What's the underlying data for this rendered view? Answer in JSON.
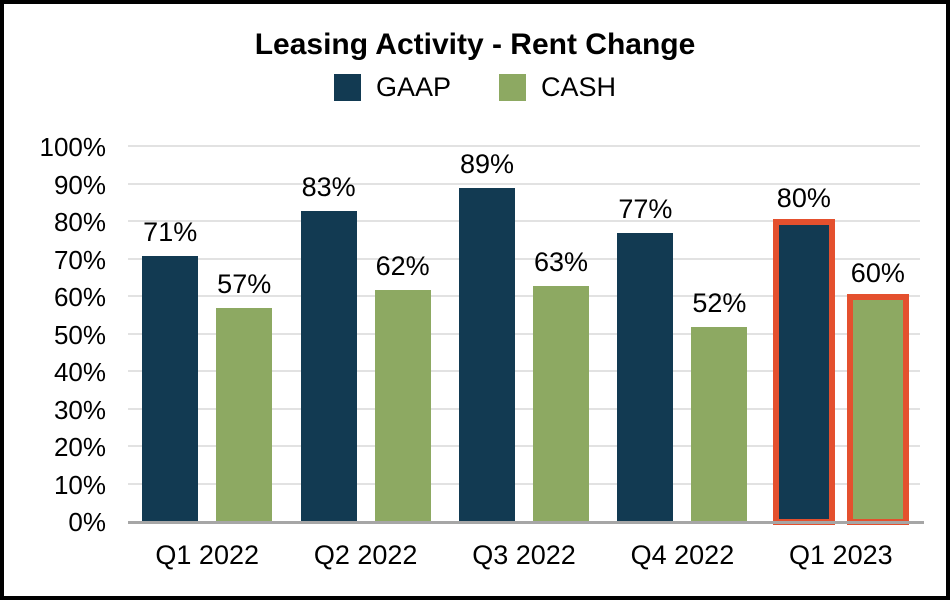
{
  "title": "Leasing Activity - Rent Change",
  "chart_data": {
    "type": "bar",
    "title": "Leasing Activity - Rent Change",
    "categories": [
      "Q1 2022",
      "Q2 2022",
      "Q3 2022",
      "Q4 2022",
      "Q1 2023"
    ],
    "series": [
      {
        "name": "GAAP",
        "color": "#123a52",
        "values": [
          71,
          83,
          89,
          77,
          80
        ]
      },
      {
        "name": "CASH",
        "color": "#8da962",
        "values": [
          57,
          62,
          63,
          52,
          60
        ]
      }
    ],
    "value_suffix": "%",
    "data_labels": {
      "GAAP": [
        "71%",
        "83%",
        "89%",
        "77%",
        "80%"
      ],
      "CASH": [
        "57%",
        "62%",
        "63%",
        "52%",
        "60%"
      ]
    },
    "ylim": [
      0,
      100
    ],
    "ytick_step": 10,
    "ytick_labels": [
      "0%",
      "10%",
      "20%",
      "30%",
      "40%",
      "50%",
      "60%",
      "70%",
      "80%",
      "90%",
      "100%"
    ],
    "grid": true,
    "legend_position": "top-center",
    "highlight": {
      "category": "Q1 2023",
      "outline_color": "#e4502e"
    }
  },
  "colors": {
    "gaap_bar": "#123a52",
    "cash_bar": "#8da962",
    "highlight_outline": "#e4502e",
    "gridline": "#e2e2e2",
    "axis_line": "#a6a6a6",
    "frame_border": "#000000",
    "background": "#ffffff",
    "text": "#000000"
  }
}
